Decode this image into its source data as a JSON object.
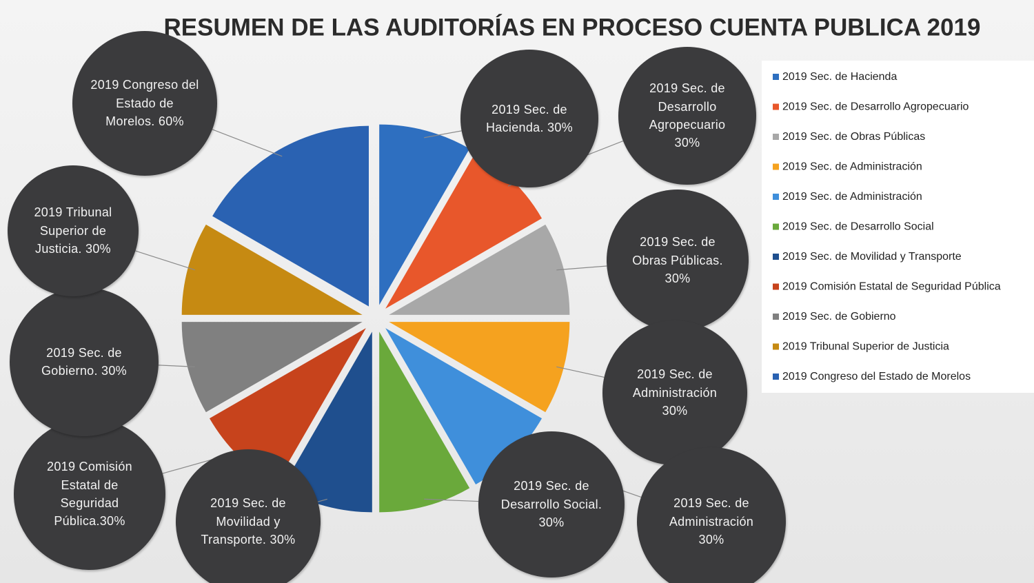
{
  "chart_data": {
    "type": "pie",
    "title": "RESUMEN DE LAS AUDITORÍAS EN PROCESO CUENTA PUBLICA 2019",
    "categories": [
      "2019 Sec. de Hacienda",
      "2019 Sec. de Desarrollo Agropecuario",
      "2019 Sec. de Obras Públicas",
      "2019 Sec. de Administración",
      "2019 Sec. de Administración",
      "2019 Sec. de Desarrollo Social",
      "2019 Sec. de Movilidad y Transporte",
      "2019 Comisión Estatal de Seguridad Pública",
      "2019 Sec. de Gobierno",
      "2019 Tribunal Superior de Justicia",
      "2019 Congreso del Estado de Morelos"
    ],
    "values": [
      30,
      30,
      30,
      30,
      30,
      30,
      30,
      30,
      30,
      30,
      60
    ],
    "value_labels": [
      "2019 Sec. de Hacienda. 30%",
      "2019 Sec. de Desarrollo Agropecuario 30%",
      "2019 Sec. de Obras Públicas. 30%",
      "2019 Sec. de Administración 30%",
      "2019 Sec. de Administración 30%",
      "2019 Sec. de Desarrollo Social. 30%",
      "2019 Sec. de Movilidad y Transporte. 30%",
      "2019 Comisión Estatal de Seguridad Pública.30%",
      "2019 Sec. de Gobierno. 30%",
      "2019 Tribunal Superior de Justicia. 30%",
      "2019 Congreso del Estado de Morelos. 60%"
    ],
    "colors": [
      "#2e6fc0",
      "#e8572b",
      "#a8a8a8",
      "#f5a21f",
      "#3f8fdb",
      "#6aa93b",
      "#1f4f8e",
      "#c7431c",
      "#808080",
      "#c68a12",
      "#2a62b2"
    ],
    "legend": "right"
  }
}
